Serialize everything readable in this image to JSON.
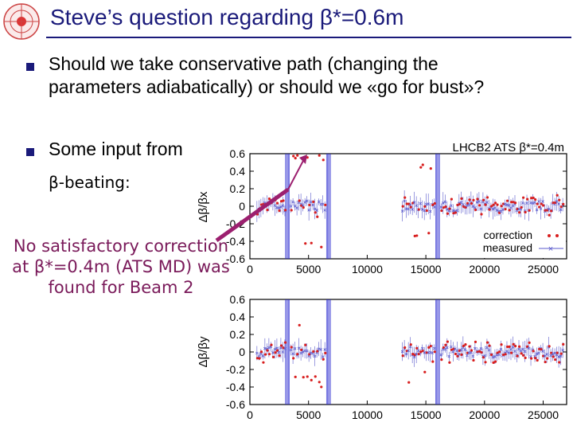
{
  "title": "Steve’s question regarding β*=0.6m",
  "bullets": [
    "Should we take conservative path (changing the parameters adiabatically) or should we «go for bust»?",
    "Some input from"
  ],
  "sub_bullet": "β-beating:",
  "note": "No satisfactory correction at β*=0.4m (ATS MD) was found for Beam 2",
  "colors": {
    "title": "#1a1a7a",
    "note": "#7a1a5a",
    "correction": "#d81e1e",
    "measured": "#5a5acc",
    "vertical_markers": "#2a2ad0",
    "arrow": "#9c1f6f"
  },
  "chart_data": [
    {
      "type": "scatter",
      "title": "LHCB2 ATS β*=0.4m",
      "ylabel": "Δβ/βx",
      "xlabel": "",
      "xlim": [
        0,
        27000
      ],
      "ylim": [
        -0.6,
        0.6
      ],
      "xticks": [
        0,
        5000,
        10000,
        15000,
        20000,
        25000
      ],
      "yticks": [
        0.6,
        0.4,
        0.2,
        0,
        -0.2,
        -0.4,
        -0.6
      ],
      "legend_position": "bottom-right",
      "series": [
        {
          "name": "correction",
          "style": "dots",
          "color": "#d81e1e"
        },
        {
          "name": "measured",
          "style": "error-bars",
          "color": "#5a5acc"
        }
      ],
      "vertical_markers_x": [
        3200,
        6700,
        16000
      ]
    },
    {
      "type": "scatter",
      "title": "",
      "ylabel": "Δβ/βy",
      "xlabel": "",
      "xlim": [
        0,
        27000
      ],
      "ylim": [
        -0.6,
        0.6
      ],
      "xticks": [
        0,
        5000,
        10000,
        15000,
        20000,
        25000
      ],
      "yticks": [
        0.6,
        0.4,
        0.2,
        0,
        -0.2,
        -0.4,
        -0.6
      ],
      "series": [
        {
          "color": "#d81e1e",
          "style": "dots"
        },
        {
          "color": "#5a5acc",
          "style": "error-bars"
        }
      ],
      "vertical_markers_x": [
        3200,
        6700,
        16000
      ]
    }
  ]
}
